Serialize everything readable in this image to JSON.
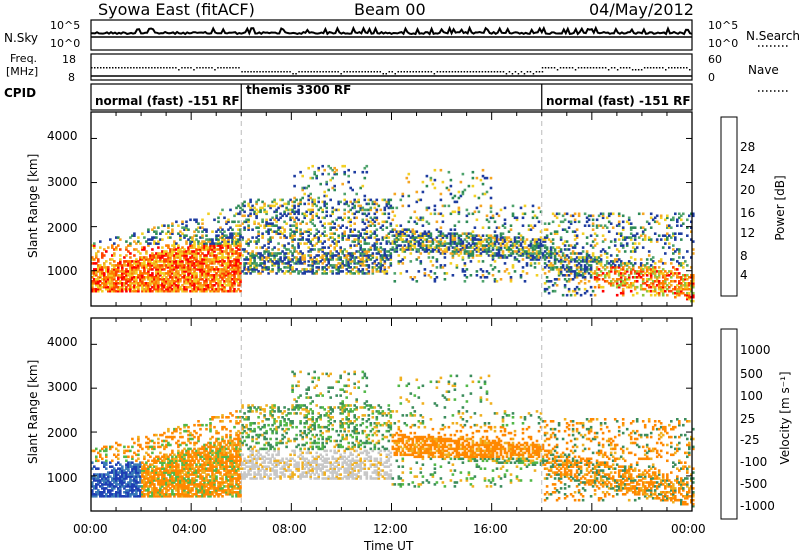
{
  "header": {
    "station": "Syowa East (fitACF)",
    "beam": "Beam 00",
    "date": "04/May/2012"
  },
  "strips": {
    "nsky_label": "N.Sky",
    "nsky_ticks": [
      "10^5",
      "10^0"
    ],
    "nsearch_label": "N.Search",
    "nsearch_ticks": [
      "10^5",
      "10^0"
    ],
    "freq_label_1": "Freq.",
    "freq_label_2": "[MHz]",
    "freq_ticks": [
      "18",
      "8"
    ],
    "nave_label": "Nave",
    "nave_ticks": [
      "60",
      "0"
    ],
    "cpid_label": "CPID",
    "cpid_segments": [
      {
        "label": "normal (fast) -151 RF",
        "start_h": 0,
        "end_h": 6.0
      },
      {
        "label": "themis 3300 RF",
        "start_h": 6.0,
        "end_h": 18.0
      },
      {
        "label": "normal (fast) -151 RF",
        "start_h": 18.0,
        "end_h": 24.0
      }
    ]
  },
  "axes": {
    "xlabel": "Time UT",
    "x_ticks": [
      "00:00",
      "04:00",
      "08:00",
      "12:00",
      "16:00",
      "20:00",
      "00:00"
    ],
    "ylabel": "Slant Range [km]",
    "y_ticks": [
      "1000",
      "2000",
      "3000",
      "4000"
    ]
  },
  "colorbars": {
    "power_label": "Power [dB]",
    "power_ticks": [
      "4",
      "8",
      "12",
      "16",
      "20",
      "24",
      "28"
    ],
    "power_colors": [
      "#0000ff",
      "#1e3ca0",
      "#2e8b57",
      "#4fa36d",
      "#8cc63f",
      "#f2d024",
      "#f5a623",
      "#ff7f00",
      "#ff4500",
      "#ff0000"
    ],
    "velocity_label": "Velocity [m s⁻¹]",
    "velocity_ticks": [
      "1000",
      "500",
      "100",
      "25",
      "-25",
      "-100",
      "-500",
      "-1000"
    ],
    "velocity_colors": [
      "#1f3fb5",
      "#3a7ab8",
      "#3c8d5c",
      "#52b848",
      "#c8c8c8",
      "#f0b020",
      "#ff8800",
      "#ff4400",
      "#ff0000"
    ]
  },
  "chart_data": [
    {
      "type": "heatmap",
      "name": "power",
      "title": "Syowa East (fitACF) Beam 00 04/May/2012",
      "xlabel": "Time UT",
      "ylabel": "Slant Range [km]",
      "xlim": [
        0,
        24
      ],
      "ylim": [
        200,
        4600
      ],
      "colorbar_label": "Power [dB]",
      "colorbar_range": [
        2,
        30
      ],
      "features": [
        {
          "t_start": 0.0,
          "t_end": 6.0,
          "range_km": [
            500,
            1800
          ],
          "power_db": [
            16,
            30
          ],
          "note": "strong echoes"
        },
        {
          "t_start": 6.0,
          "t_end": 18.0,
          "range_km": [
            900,
            3400
          ],
          "power_db": [
            4,
            24
          ]
        },
        {
          "t_start": 18.0,
          "t_end": 24.0,
          "range_km": [
            400,
            2200
          ],
          "power_db": [
            4,
            28
          ]
        }
      ]
    },
    {
      "type": "heatmap",
      "name": "velocity",
      "xlabel": "Time UT",
      "ylabel": "Slant Range [km]",
      "xlim": [
        0,
        24
      ],
      "ylim": [
        200,
        4600
      ],
      "colorbar_label": "Velocity [m s⁻¹]",
      "colorbar_range": [
        -1000,
        1000
      ]
    }
  ]
}
